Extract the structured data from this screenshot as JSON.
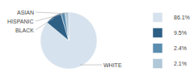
{
  "chart_data": {
    "type": "pie",
    "categories": [
      "WHITE",
      "BLACK",
      "HISPANIC",
      "ASIAN"
    ],
    "values": [
      86.1,
      9.5,
      2.4,
      2.1
    ],
    "value_labels": [
      "86.1%",
      "9.5%",
      "2.4%",
      "2.1%"
    ],
    "colors": [
      "#d6e2ed",
      "#2e5f85",
      "#5a8db0",
      "#b0c8d8"
    ],
    "legend": "right"
  }
}
